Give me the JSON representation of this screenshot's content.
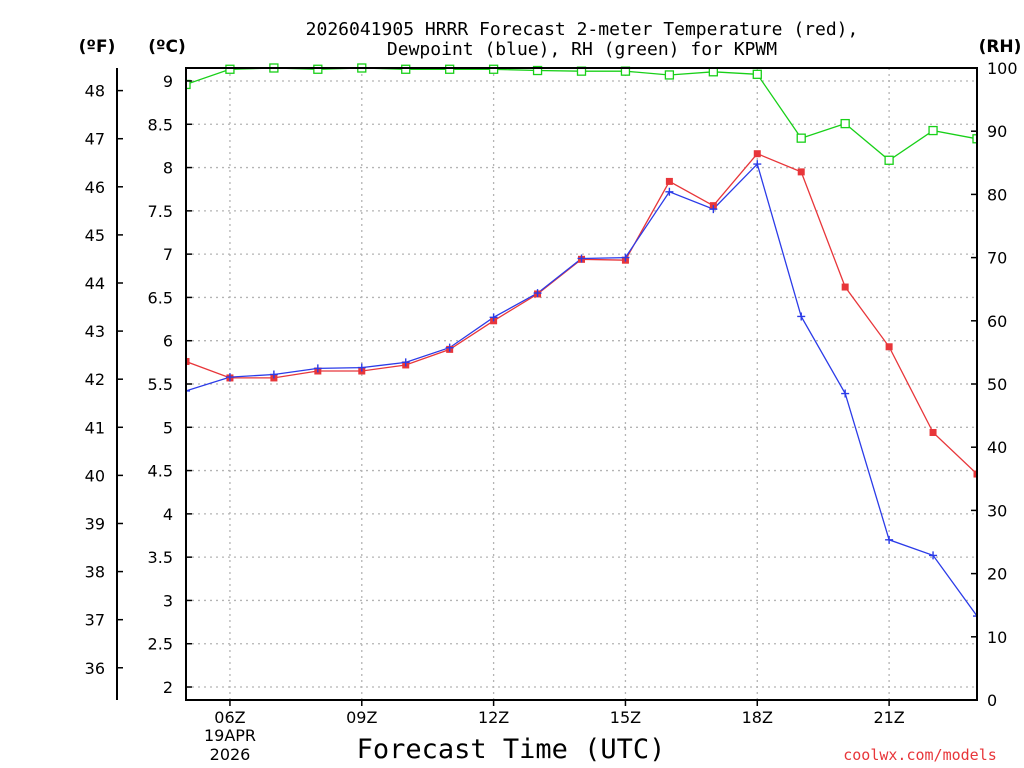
{
  "chart_data": {
    "type": "line",
    "title_line1": "2026041905 HRRR Forecast 2-meter Temperature (red),",
    "title_line2": "Dewpoint (blue), RH (green) for KPWM",
    "units": {
      "f": "(ºF)",
      "c": "(ºC)",
      "rh": "(RH)"
    },
    "xlabel": "Forecast Time (UTC)",
    "credit": "coolwx.com/models",
    "date_label": [
      "19APR",
      "2026"
    ],
    "colors": {
      "temp": "#e8363a",
      "dew": "#2b3be8",
      "rh": "#18d018",
      "credit": "#e8363a"
    },
    "x_hours": [
      5,
      6,
      7,
      8,
      9,
      10,
      11,
      12,
      13,
      14,
      15,
      16,
      17,
      18,
      19,
      20,
      21,
      22,
      23
    ],
    "x_ticks": [
      {
        "hour": 6,
        "label": "06Z"
      },
      {
        "hour": 9,
        "label": "09Z"
      },
      {
        "hour": 12,
        "label": "12Z"
      },
      {
        "hour": 15,
        "label": "15Z"
      },
      {
        "hour": 18,
        "label": "18Z"
      },
      {
        "hour": 21,
        "label": "21Z"
      }
    ],
    "xlim": [
      5,
      23
    ],
    "ylim_c": [
      1.85,
      9.15
    ],
    "ylim_rh": [
      0,
      100
    ],
    "c_ticks": [
      "2",
      "2.5",
      "3",
      "3.5",
      "4",
      "4.5",
      "5",
      "5.5",
      "6",
      "6.5",
      "7",
      "7.5",
      "8",
      "8.5",
      "9"
    ],
    "f_ticks": [
      "36",
      "37",
      "38",
      "39",
      "40",
      "41",
      "42",
      "43",
      "44",
      "45",
      "46",
      "47",
      "48"
    ],
    "rh_ticks": [
      "0",
      "10",
      "20",
      "30",
      "40",
      "50",
      "60",
      "70",
      "80",
      "90",
      "100"
    ],
    "series": [
      {
        "name": "Temperature",
        "key": "temp",
        "units": "C",
        "marker": "square-filled",
        "values": [
          5.76,
          5.57,
          5.57,
          5.65,
          5.65,
          5.72,
          5.9,
          6.23,
          6.54,
          6.94,
          6.93,
          7.84,
          7.56,
          8.16,
          7.95,
          6.62,
          5.93,
          4.94,
          4.46
        ]
      },
      {
        "name": "Dewpoint",
        "key": "dew",
        "units": "C",
        "marker": "plus",
        "values": [
          5.42,
          5.58,
          5.61,
          5.68,
          5.69,
          5.75,
          5.92,
          6.27,
          6.55,
          6.95,
          6.96,
          7.72,
          7.52,
          8.04,
          6.28,
          5.39,
          3.7,
          3.52,
          2.82
        ]
      },
      {
        "name": "Relative Humidity",
        "key": "rh",
        "units": "%",
        "marker": "square-open",
        "values": [
          97.4,
          99.8,
          100,
          99.8,
          100,
          99.8,
          99.8,
          99.8,
          99.6,
          99.5,
          99.5,
          98.9,
          99.4,
          99.0,
          88.9,
          91.2,
          85.4,
          90.1,
          88.8
        ]
      }
    ]
  }
}
